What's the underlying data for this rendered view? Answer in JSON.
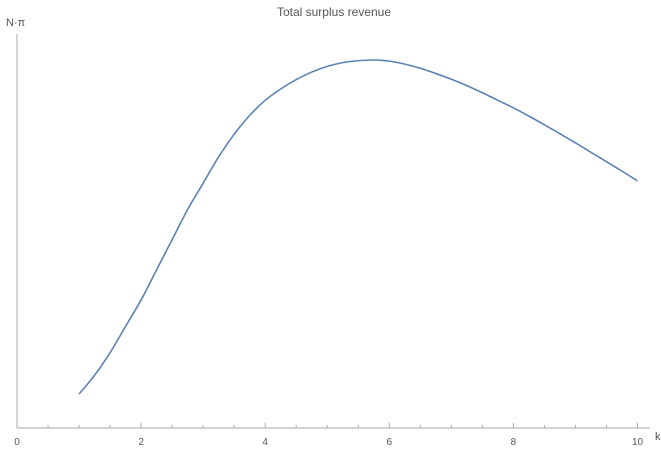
{
  "chart_data": {
    "type": "line",
    "title": "Total  surplus revenue",
    "xlabel": "k",
    "ylabel": "N·π",
    "xlim": [
      0,
      10
    ],
    "ylim": [
      0,
      1
    ],
    "x_ticks": [
      0,
      2,
      4,
      6,
      8,
      10
    ],
    "x_minor_step": 0.5,
    "y_ticks_shown": false,
    "grid": false,
    "series": [
      {
        "color": "#5e81b5",
        "x": [
          1.0,
          1.25,
          1.5,
          1.75,
          2.0,
          2.25,
          2.5,
          2.75,
          3.0,
          3.25,
          3.5,
          3.75,
          4.0,
          4.25,
          4.5,
          4.75,
          5.0,
          5.25,
          5.5,
          5.75,
          6.0,
          6.25,
          6.5,
          6.75,
          7.0,
          7.25,
          7.5,
          7.75,
          8.0,
          8.25,
          8.5,
          8.75,
          9.0,
          9.25,
          9.5,
          9.75,
          10.0
        ],
        "y": [
          0.09,
          0.14,
          0.2,
          0.27,
          0.34,
          0.42,
          0.5,
          0.58,
          0.65,
          0.72,
          0.78,
          0.83,
          0.87,
          0.9,
          0.925,
          0.945,
          0.96,
          0.97,
          0.975,
          0.977,
          0.974,
          0.966,
          0.955,
          0.941,
          0.926,
          0.909,
          0.89,
          0.87,
          0.85,
          0.828,
          0.805,
          0.781,
          0.757,
          0.732,
          0.707,
          0.682,
          0.656
        ]
      }
    ]
  }
}
